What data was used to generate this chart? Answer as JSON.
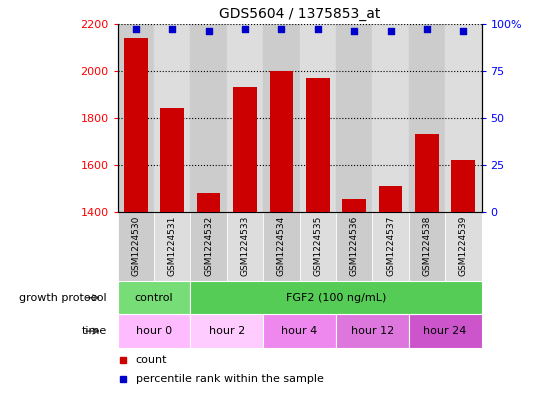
{
  "title": "GDS5604 / 1375853_at",
  "samples": [
    "GSM1224530",
    "GSM1224531",
    "GSM1224532",
    "GSM1224533",
    "GSM1224534",
    "GSM1224535",
    "GSM1224536",
    "GSM1224537",
    "GSM1224538",
    "GSM1224539"
  ],
  "counts": [
    2140,
    1840,
    1480,
    1930,
    2000,
    1970,
    1455,
    1510,
    1730,
    1620
  ],
  "percentile_ranks": [
    97,
    97,
    96,
    97,
    97,
    97,
    96,
    96,
    97,
    96
  ],
  "ylim_left": [
    1400,
    2200
  ],
  "ylim_right": [
    0,
    100
  ],
  "yticks_left": [
    1400,
    1600,
    1800,
    2000,
    2200
  ],
  "yticks_right": [
    0,
    25,
    50,
    75,
    100
  ],
  "bar_color": "#cc0000",
  "dot_color": "#0000cc",
  "bg_color": "#ffffff",
  "col_bg_even": "#cccccc",
  "col_bg_odd": "#dddddd",
  "growth_protocol_row": {
    "label": "growth protocol",
    "segments": [
      {
        "text": "control",
        "start": 0,
        "end": 2,
        "color": "#77dd77"
      },
      {
        "text": "FGF2 (100 ng/mL)",
        "start": 2,
        "end": 10,
        "color": "#55cc55"
      }
    ]
  },
  "time_row": {
    "label": "time",
    "segments": [
      {
        "text": "hour 0",
        "start": 0,
        "end": 2,
        "color": "#ffbbff"
      },
      {
        "text": "hour 2",
        "start": 2,
        "end": 4,
        "color": "#ffccff"
      },
      {
        "text": "hour 4",
        "start": 4,
        "end": 6,
        "color": "#ee88ee"
      },
      {
        "text": "hour 12",
        "start": 6,
        "end": 8,
        "color": "#dd77dd"
      },
      {
        "text": "hour 24",
        "start": 8,
        "end": 10,
        "color": "#cc55cc"
      }
    ]
  },
  "legend_items": [
    {
      "label": "count",
      "color": "#cc0000"
    },
    {
      "label": "percentile rank within the sample",
      "color": "#0000cc"
    }
  ]
}
